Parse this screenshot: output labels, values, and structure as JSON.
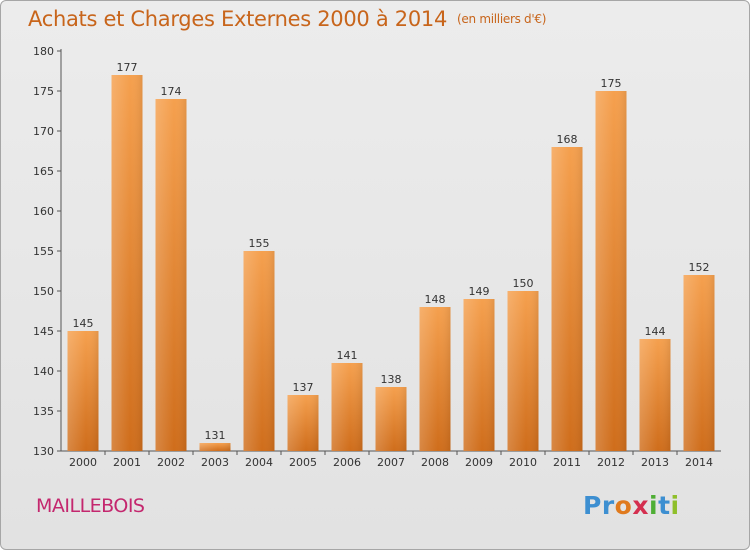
{
  "header": {
    "title": "Achats et Charges Externes 2000 à 2014",
    "unit": "(en milliers d'€)"
  },
  "footer": {
    "place": "MAILLEBOIS",
    "brand": {
      "p1": "Pr",
      "p2": "o",
      "p3": "x",
      "p4": "i",
      "p5": "t",
      "p6": "i"
    }
  },
  "colors": {
    "bar_top": "#f5a04e",
    "bar_bottom": "#cf6d1b",
    "title": "#c8651b",
    "place": "#c4276e"
  },
  "chart_data": {
    "type": "bar",
    "title": "Achats et Charges Externes 2000 à 2014",
    "subtitle": "(en milliers d'€)",
    "categories": [
      "2000",
      "2001",
      "2002",
      "2003",
      "2004",
      "2005",
      "2006",
      "2007",
      "2008",
      "2009",
      "2010",
      "2011",
      "2012",
      "2013",
      "2014"
    ],
    "values": [
      145,
      177,
      174,
      131,
      155,
      137,
      141,
      138,
      148,
      149,
      150,
      168,
      175,
      144,
      152
    ],
    "yticks": [
      130,
      135,
      140,
      145,
      150,
      155,
      160,
      165,
      170,
      175,
      180
    ],
    "ylim": [
      130,
      180
    ],
    "grid": false,
    "data_labels": true
  }
}
